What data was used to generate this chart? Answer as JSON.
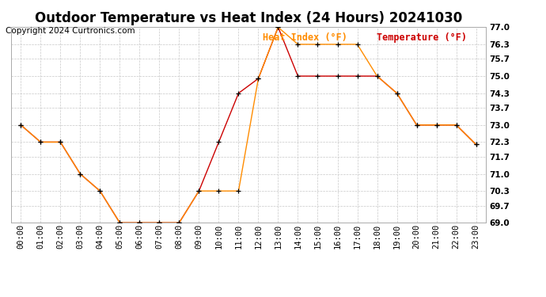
{
  "title": "Outdoor Temperature vs Heat Index (24 Hours) 20241030",
  "copyright": "Copyright 2024 Curtronics.com",
  "legend_heat": "Heat Index (°F)",
  "legend_temp": "Temperature (°F)",
  "hours": [
    "00:00",
    "01:00",
    "02:00",
    "03:00",
    "04:00",
    "05:00",
    "06:00",
    "07:00",
    "08:00",
    "09:00",
    "10:00",
    "11:00",
    "12:00",
    "13:00",
    "14:00",
    "15:00",
    "16:00",
    "17:00",
    "18:00",
    "19:00",
    "20:00",
    "21:00",
    "22:00",
    "23:00"
  ],
  "temperature": [
    73.0,
    72.3,
    72.3,
    71.0,
    70.3,
    69.0,
    69.0,
    69.0,
    69.0,
    70.3,
    72.3,
    74.3,
    74.9,
    77.0,
    75.0,
    75.0,
    75.0,
    75.0,
    75.0,
    74.3,
    73.0,
    73.0,
    73.0,
    72.2
  ],
  "heat_index": [
    73.0,
    72.3,
    72.3,
    71.0,
    70.3,
    69.0,
    69.0,
    69.0,
    69.0,
    70.3,
    70.3,
    70.3,
    74.9,
    77.0,
    76.3,
    76.3,
    76.3,
    76.3,
    75.0,
    74.3,
    73.0,
    73.0,
    73.0,
    72.2
  ],
  "temp_color": "#cc0000",
  "heat_color": "#ff8c00",
  "marker_color": "#000000",
  "ylim_min": 69.0,
  "ylim_max": 77.0,
  "yticks": [
    69.0,
    69.7,
    70.3,
    71.0,
    71.7,
    72.3,
    73.0,
    73.7,
    74.3,
    75.0,
    75.7,
    76.3,
    77.0
  ],
  "bg_color": "#ffffff",
  "grid_color": "#c8c8c8",
  "title_fontsize": 12,
  "copyright_fontsize": 7.5,
  "legend_fontsize": 8.5,
  "tick_fontsize": 7.5
}
